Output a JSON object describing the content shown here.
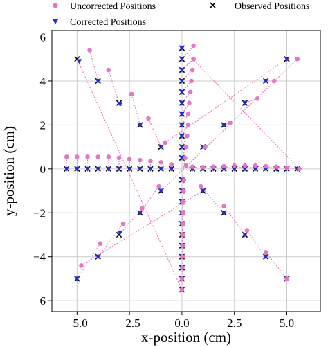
{
  "chart_data": {
    "type": "scatter",
    "xlabel": "x-position (cm)",
    "ylabel": "y-position (cm)",
    "xlim": [
      -6.2,
      6.6
    ],
    "ylim": [
      -6.5,
      6.3
    ],
    "xticks": [
      -5.0,
      -2.5,
      0.0,
      2.5,
      5.0
    ],
    "xtick_labels": [
      "−5.0",
      "−2.5",
      "0.0",
      "2.5",
      "5.0"
    ],
    "yticks": [
      -6,
      -4,
      -2,
      0,
      2,
      4,
      6
    ],
    "ytick_labels": [
      "−6",
      "−4",
      "−2",
      "0",
      "2",
      "4",
      "6"
    ],
    "grid": true,
    "legend": "top, outside plot, two columns",
    "colors": {
      "uncorrected": "#e377c2",
      "corrected": "#1f2bd9",
      "observed": "#000000",
      "grid": "#cccccc"
    },
    "series": [
      {
        "name": "Uncorrected Positions",
        "marker": "circle",
        "points": [
          [
            -5.5,
            0.55
          ],
          [
            -5.0,
            0.55
          ],
          [
            -4.5,
            0.55
          ],
          [
            -4.0,
            0.55
          ],
          [
            -3.5,
            0.55
          ],
          [
            -3.0,
            0.5
          ],
          [
            -2.5,
            0.45
          ],
          [
            -2.0,
            0.4
          ],
          [
            -1.5,
            0.35
          ],
          [
            -1.0,
            0.3
          ],
          [
            -0.5,
            0.2
          ],
          [
            0.2,
            0.15
          ],
          [
            0.5,
            0.1
          ],
          [
            1.0,
            0.08
          ],
          [
            1.5,
            0.1
          ],
          [
            2.0,
            0.12
          ],
          [
            2.5,
            0.15
          ],
          [
            3.0,
            0.15
          ],
          [
            3.5,
            0.15
          ],
          [
            4.0,
            0.12
          ],
          [
            4.5,
            0.1
          ],
          [
            5.0,
            0.05
          ],
          [
            5.6,
            0.0
          ],
          [
            0.55,
            5.6
          ],
          [
            0.55,
            5.0
          ],
          [
            0.5,
            4.5
          ],
          [
            0.45,
            4.0
          ],
          [
            0.4,
            3.5
          ],
          [
            0.35,
            3.0
          ],
          [
            0.3,
            2.5
          ],
          [
            0.3,
            2.0
          ],
          [
            0.25,
            1.5
          ],
          [
            0.2,
            1.0
          ],
          [
            0.15,
            0.5
          ],
          [
            0.1,
            -0.5
          ],
          [
            0.08,
            -1.0
          ],
          [
            0.05,
            -1.5
          ],
          [
            0.05,
            -2.0
          ],
          [
            0.05,
            -2.5
          ],
          [
            0.03,
            -3.0
          ],
          [
            0.03,
            -3.5
          ],
          [
            0.02,
            -4.0
          ],
          [
            0.02,
            -4.5
          ],
          [
            0.0,
            -5.0
          ],
          [
            0.0,
            -5.5
          ],
          [
            -4.4,
            5.4
          ],
          [
            -3.5,
            4.5
          ],
          [
            -2.4,
            3.4
          ],
          [
            -1.6,
            2.3
          ],
          [
            -0.8,
            1.2
          ],
          [
            4.4,
            4.0
          ],
          [
            3.6,
            3.2
          ],
          [
            2.3,
            2.1
          ],
          [
            1.1,
            1.0
          ],
          [
            5.5,
            5.0
          ],
          [
            -1.1,
            -0.8
          ],
          [
            -1.9,
            -1.8
          ],
          [
            -2.8,
            -2.5
          ],
          [
            -3.9,
            -3.4
          ],
          [
            -4.8,
            -4.4
          ],
          [
            0.9,
            -0.8
          ],
          [
            2.0,
            -1.7
          ],
          [
            3.1,
            -2.8
          ],
          [
            4.0,
            -3.8
          ],
          [
            5.0,
            -5.0
          ]
        ]
      },
      {
        "name": "Corrected Positions",
        "marker": "triangle-down",
        "points": [
          [
            -5.5,
            0.0
          ],
          [
            -5.0,
            0.0
          ],
          [
            -4.5,
            0.0
          ],
          [
            -4.0,
            0.0
          ],
          [
            -3.5,
            0.0
          ],
          [
            -3.0,
            0.0
          ],
          [
            -2.5,
            0.0
          ],
          [
            -2.0,
            0.0
          ],
          [
            -1.5,
            0.0
          ],
          [
            -1.0,
            0.0
          ],
          [
            -0.5,
            0.0
          ],
          [
            0.5,
            0.0
          ],
          [
            1.0,
            0.0
          ],
          [
            1.5,
            0.0
          ],
          [
            2.0,
            0.0
          ],
          [
            2.5,
            0.0
          ],
          [
            3.0,
            0.0
          ],
          [
            3.5,
            0.0
          ],
          [
            4.0,
            0.0
          ],
          [
            4.5,
            0.0
          ],
          [
            5.0,
            0.0
          ],
          [
            5.5,
            0.0
          ],
          [
            0.0,
            5.5
          ],
          [
            0.0,
            5.0
          ],
          [
            0.0,
            4.5
          ],
          [
            0.0,
            4.0
          ],
          [
            0.0,
            3.5
          ],
          [
            0.0,
            3.0
          ],
          [
            0.0,
            2.5
          ],
          [
            0.0,
            2.0
          ],
          [
            0.0,
            1.5
          ],
          [
            0.0,
            1.0
          ],
          [
            0.0,
            0.5
          ],
          [
            0.0,
            -0.5
          ],
          [
            0.0,
            -1.0
          ],
          [
            0.0,
            -1.5
          ],
          [
            0.0,
            -2.0
          ],
          [
            0.0,
            -2.5
          ],
          [
            0.0,
            -3.0
          ],
          [
            0.0,
            -3.5
          ],
          [
            0.0,
            -4.0
          ],
          [
            0.0,
            -4.5
          ],
          [
            0.0,
            -5.0
          ],
          [
            0.0,
            -5.5
          ],
          [
            -4.9,
            4.9
          ],
          [
            -4.0,
            4.0
          ],
          [
            -2.95,
            2.95
          ],
          [
            -2.0,
            2.0
          ],
          [
            -1.0,
            1.0
          ],
          [
            5.0,
            5.0
          ],
          [
            4.0,
            4.0
          ],
          [
            3.0,
            3.0
          ],
          [
            2.0,
            2.0
          ],
          [
            1.0,
            1.0
          ],
          [
            -1.0,
            -1.0
          ],
          [
            -2.0,
            -2.0
          ],
          [
            -2.95,
            -2.9
          ],
          [
            -4.0,
            -4.0
          ],
          [
            -5.0,
            -5.0
          ],
          [
            1.0,
            -1.0
          ],
          [
            2.0,
            -2.0
          ],
          [
            3.0,
            -3.0
          ],
          [
            4.0,
            -4.0
          ],
          [
            5.0,
            -5.0
          ]
        ]
      },
      {
        "name": "Observed Positions",
        "marker": "x",
        "points": [
          [
            -5.5,
            0.0
          ],
          [
            -5.0,
            0.0
          ],
          [
            -4.5,
            0.0
          ],
          [
            -4.0,
            0.0
          ],
          [
            -3.5,
            0.0
          ],
          [
            -3.0,
            0.0
          ],
          [
            -2.5,
            0.0
          ],
          [
            -2.0,
            0.0
          ],
          [
            -1.5,
            0.0
          ],
          [
            -1.0,
            0.0
          ],
          [
            -0.5,
            0.0
          ],
          [
            0.5,
            0.0
          ],
          [
            1.0,
            0.0
          ],
          [
            1.5,
            0.0
          ],
          [
            2.0,
            0.0
          ],
          [
            2.5,
            0.0
          ],
          [
            3.0,
            0.0
          ],
          [
            3.5,
            0.0
          ],
          [
            4.0,
            0.0
          ],
          [
            4.5,
            0.0
          ],
          [
            5.0,
            0.0
          ],
          [
            5.5,
            0.0
          ],
          [
            0.0,
            5.5
          ],
          [
            0.0,
            5.0
          ],
          [
            0.0,
            4.5
          ],
          [
            0.0,
            4.0
          ],
          [
            0.0,
            3.5
          ],
          [
            0.0,
            3.0
          ],
          [
            0.0,
            2.5
          ],
          [
            0.0,
            2.0
          ],
          [
            0.0,
            1.5
          ],
          [
            0.0,
            1.0
          ],
          [
            0.0,
            0.5
          ],
          [
            0.0,
            -0.5
          ],
          [
            0.0,
            -1.0
          ],
          [
            0.0,
            -1.5
          ],
          [
            0.0,
            -2.0
          ],
          [
            0.0,
            -2.5
          ],
          [
            0.0,
            -3.0
          ],
          [
            0.0,
            -3.5
          ],
          [
            0.0,
            -4.0
          ],
          [
            0.0,
            -4.5
          ],
          [
            0.0,
            -5.0
          ],
          [
            0.0,
            -5.5
          ],
          [
            -5.0,
            5.0
          ],
          [
            -4.0,
            4.0
          ],
          [
            -3.0,
            3.0
          ],
          [
            -2.0,
            2.0
          ],
          [
            -1.0,
            1.0
          ],
          [
            5.0,
            5.0
          ],
          [
            4.0,
            4.0
          ],
          [
            3.0,
            3.0
          ],
          [
            2.0,
            2.0
          ],
          [
            1.0,
            1.0
          ],
          [
            -1.0,
            -1.0
          ],
          [
            -2.0,
            -2.0
          ],
          [
            -3.0,
            -3.0
          ],
          [
            -4.0,
            -4.0
          ],
          [
            -5.0,
            -5.0
          ],
          [
            1.0,
            -1.0
          ],
          [
            2.0,
            -2.0
          ],
          [
            3.0,
            -3.0
          ],
          [
            4.0,
            -4.0
          ],
          [
            5.0,
            -5.0
          ]
        ]
      }
    ]
  }
}
